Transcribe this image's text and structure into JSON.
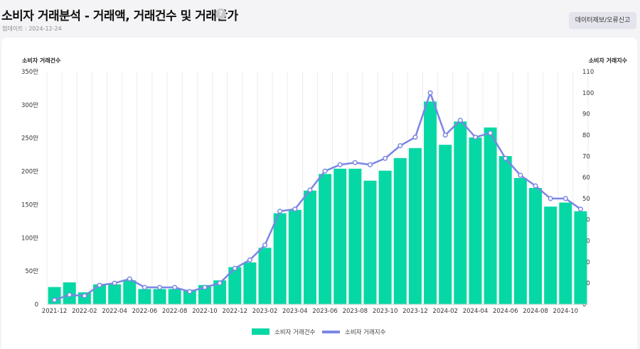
{
  "header": {
    "title": "소비자 거래분석 - 거래액, 거래건수 및 거래단가",
    "help_icon": "?",
    "updated": "업데이트 : 2024-12-24",
    "report_button": "데이터제보/오류신고"
  },
  "colors": {
    "bar": "#05d8a4",
    "line": "#7b86e4",
    "grid": "#ececec"
  },
  "chart_data": {
    "type": "bar",
    "title": "",
    "categories": [
      "2021-12",
      "2022-01",
      "2022-02",
      "2022-03",
      "2022-04",
      "2022-05",
      "2022-06",
      "2022-07",
      "2022-08",
      "2022-09",
      "2022-10",
      "2022-11",
      "2022-12",
      "2023-01",
      "2023-02",
      "2023-03",
      "2023-04",
      "2023-05",
      "2023-06",
      "2023-07",
      "2023-08",
      "2023-09",
      "2023-10",
      "2023-11",
      "2023-12",
      "2024-01",
      "2024-02",
      "2024-03",
      "2024-04",
      "2024-05",
      "2024-06",
      "2024-07",
      "2024-08",
      "2024-09",
      "2024-10",
      "2024-11"
    ],
    "x_tick_labels": [
      "2021-12",
      "2022-02",
      "2022-04",
      "2022-06",
      "2022-08",
      "2022-10",
      "2022-12",
      "2023-02",
      "2023-04",
      "2023-06",
      "2023-08",
      "2023-10",
      "2023-12",
      "2024-02",
      "2024-04",
      "2024-06",
      "2024-08",
      "2024-10"
    ],
    "ylabel_left": "소비자 거래건수",
    "ylabel_right": "소비자 거래지수",
    "ylim_left": [
      0,
      3500000
    ],
    "ylim_right": [
      0,
      110
    ],
    "left_tick_labels": [
      "0",
      "50만",
      "100만",
      "150만",
      "200만",
      "250만",
      "300만",
      "350만"
    ],
    "right_tick_labels": [
      "0",
      "10",
      "20",
      "30",
      "40",
      "50",
      "60",
      "70",
      "80",
      "90",
      "100",
      "110"
    ],
    "grid": true,
    "legend_position": "bottom",
    "series": [
      {
        "name": "소비자 거래건수",
        "kind": "bar",
        "axis": "left",
        "values": [
          260000,
          330000,
          180000,
          300000,
          300000,
          360000,
          230000,
          230000,
          230000,
          220000,
          290000,
          360000,
          560000,
          630000,
          850000,
          1370000,
          1420000,
          1710000,
          1960000,
          2040000,
          2040000,
          1860000,
          2010000,
          2200000,
          2350000,
          3050000,
          2400000,
          2750000,
          2510000,
          2660000,
          2230000,
          1900000,
          1750000,
          1470000,
          1530000,
          1400000
        ]
      },
      {
        "name": "소비자 거래지수",
        "kind": "line",
        "axis": "right",
        "values": [
          2,
          4.5,
          4,
          9,
          10,
          12,
          8,
          8,
          8,
          6,
          8,
          10,
          17,
          21,
          28,
          44,
          45,
          54,
          63,
          66,
          67,
          66,
          69,
          75,
          79,
          100,
          80,
          87,
          79,
          81,
          69,
          61,
          56,
          50,
          50,
          45
        ]
      }
    ]
  }
}
